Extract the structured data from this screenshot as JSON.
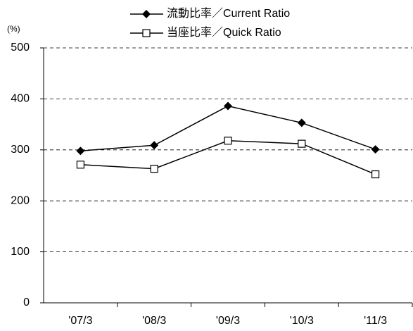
{
  "chart_data": {
    "type": "line",
    "y_unit": "(%)",
    "categories": [
      "'07/3",
      "'08/3",
      "'09/3",
      "'10/3",
      "'11/3"
    ],
    "series": [
      {
        "name": "流動比率／Current Ratio",
        "color": "#000000",
        "marker": "diamond",
        "values": [
          298,
          309,
          386,
          353,
          301
        ]
      },
      {
        "name": "当座比率／Quick Ratio",
        "color": "#000000",
        "marker": "square-open",
        "values": [
          271,
          263,
          318,
          312,
          252
        ]
      }
    ],
    "ylim": [
      0,
      500
    ],
    "yticks": [
      0,
      100,
      200,
      300,
      400,
      500
    ],
    "grid": true
  }
}
